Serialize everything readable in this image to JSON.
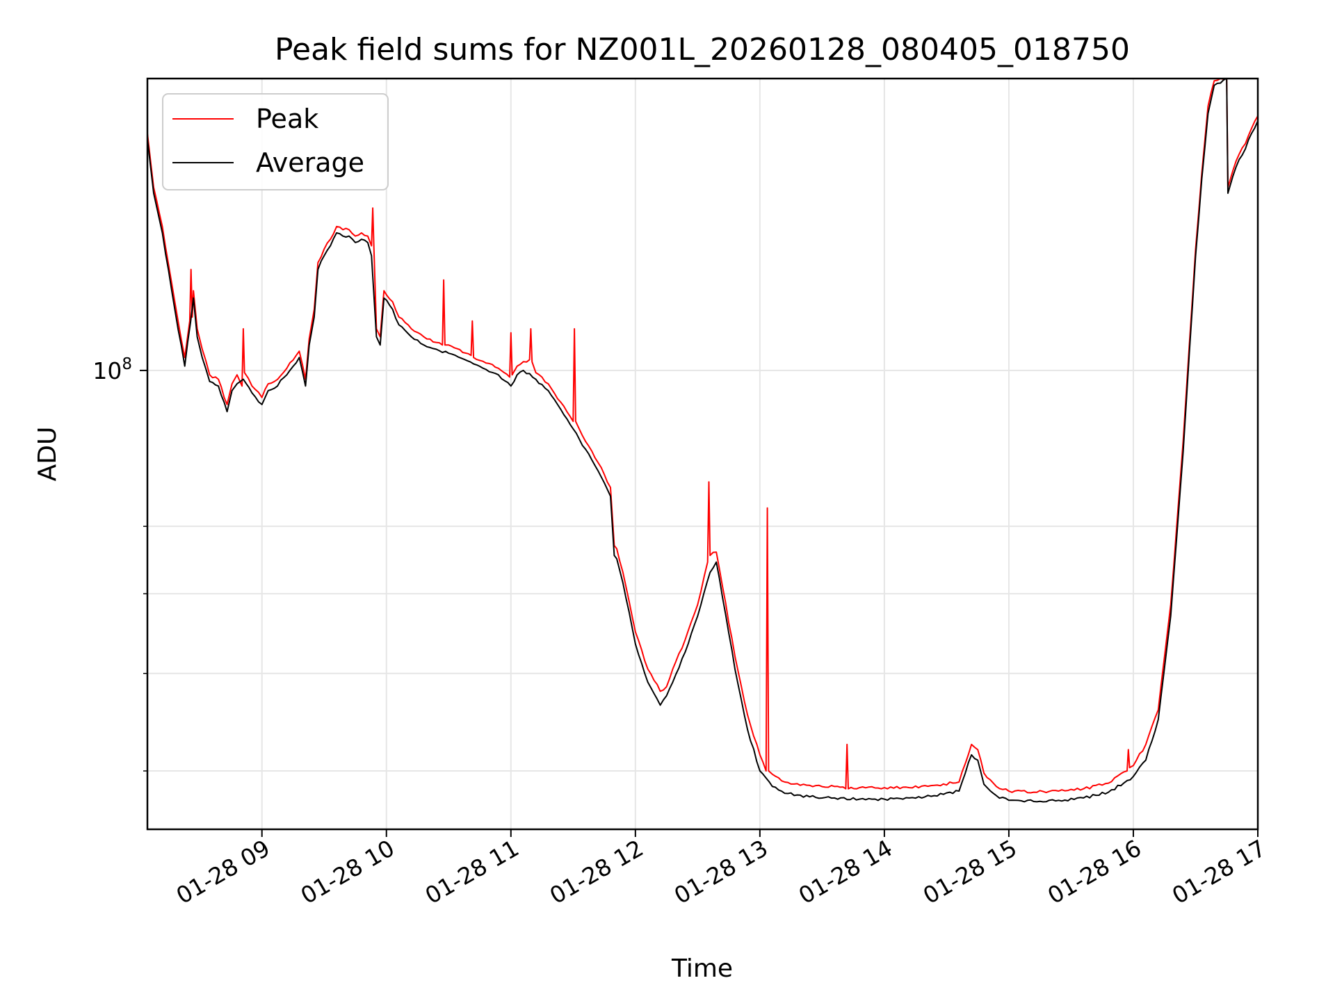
{
  "chart_data": {
    "type": "line",
    "title": "Peak field sums for NZ001L_20260128_080405_018750",
    "xlabel": "Time",
    "ylabel": "ADU",
    "yscale": "log",
    "xlim_hours": [
      8.08,
      17.0
    ],
    "ylim": [
      35000000,
      195000000
    ],
    "x_ticks": [
      {
        "value": 9,
        "label": "01-28 09"
      },
      {
        "value": 10,
        "label": "01-28 10"
      },
      {
        "value": 11,
        "label": "01-28 11"
      },
      {
        "value": 12,
        "label": "01-28 12"
      },
      {
        "value": 13,
        "label": "01-28 13"
      },
      {
        "value": 14,
        "label": "01-28 14"
      },
      {
        "value": 15,
        "label": "01-28 15"
      },
      {
        "value": 16,
        "label": "01-28 16"
      },
      {
        "value": 17,
        "label": "01-28 17"
      }
    ],
    "y_major_ticks": [
      {
        "value": 100000000,
        "base": "10",
        "exp": "8"
      }
    ],
    "y_minor_ticks": [
      40000000,
      50000000,
      60000000,
      70000000
    ],
    "grid": true,
    "legend_position": "top-left",
    "series": [
      {
        "name": "Average",
        "color": "#000000",
        "x": [
          8.08,
          8.13,
          8.2,
          8.3,
          8.38,
          8.45,
          8.48,
          8.52,
          8.58,
          8.65,
          8.72,
          8.76,
          8.8,
          8.85,
          8.92,
          9.0,
          9.05,
          9.1,
          9.2,
          9.3,
          9.35,
          9.38,
          9.42,
          9.45,
          9.5,
          9.55,
          9.6,
          9.65,
          9.7,
          9.75,
          9.8,
          9.85,
          9.88,
          9.92,
          9.95,
          9.98,
          10.05,
          10.1,
          10.2,
          10.3,
          10.5,
          10.7,
          10.9,
          11.0,
          11.05,
          11.1,
          11.2,
          11.3,
          11.4,
          11.5,
          11.6,
          11.7,
          11.8,
          11.83,
          11.85,
          11.9,
          12.0,
          12.1,
          12.2,
          12.25,
          12.3,
          12.4,
          12.5,
          12.6,
          12.65,
          12.7,
          12.8,
          12.9,
          13.0,
          13.1,
          13.2,
          13.4,
          13.6,
          13.8,
          14.0,
          14.2,
          14.4,
          14.6,
          14.7,
          14.75,
          14.8,
          14.9,
          15.0,
          15.2,
          15.4,
          15.6,
          15.8,
          16.0,
          16.1,
          16.2,
          16.3,
          16.4,
          16.5,
          16.55,
          16.6,
          16.65,
          16.7,
          16.75,
          16.76,
          16.8,
          16.85,
          16.9,
          16.95,
          17.0
        ],
        "values": [
          170000000,
          150000000,
          137000000,
          115000000,
          101000000,
          118000000,
          108000000,
          103000000,
          97500000,
          96500000,
          91000000,
          95500000,
          97000000,
          98000000,
          95000000,
          92500000,
          95500000,
          96000000,
          99000000,
          103000000,
          96500000,
          106000000,
          113000000,
          126000000,
          130000000,
          133000000,
          137000000,
          136000000,
          136000000,
          134000000,
          135000000,
          134000000,
          130000000,
          108000000,
          106000000,
          118000000,
          115000000,
          111000000,
          108000000,
          106000000,
          104000000,
          101500000,
          99000000,
          96500000,
          99000000,
          100000000,
          98000000,
          95500000,
          91500000,
          87500000,
          83500000,
          79500000,
          75000000,
          65500000,
          65000000,
          61500000,
          53500000,
          49000000,
          46500000,
          47500000,
          49000000,
          52500000,
          57000000,
          63000000,
          64500000,
          59500000,
          50500000,
          44000000,
          40000000,
          38600000,
          38000000,
          37700000,
          37600000,
          37500000,
          37500000,
          37600000,
          37800000,
          38200000,
          41500000,
          41000000,
          38800000,
          37800000,
          37400000,
          37300000,
          37400000,
          37600000,
          38100000,
          39500000,
          41000000,
          45000000,
          57000000,
          83000000,
          130000000,
          155000000,
          180000000,
          192000000,
          193000000,
          195000000,
          150000000,
          156000000,
          162000000,
          166000000,
          172000000,
          177000000
        ]
      },
      {
        "name": "Peak",
        "color": "#ff0000",
        "x": [
          8.08,
          8.13,
          8.2,
          8.3,
          8.38,
          8.42,
          8.43,
          8.44,
          8.45,
          8.48,
          8.52,
          8.58,
          8.65,
          8.72,
          8.76,
          8.8,
          8.84,
          8.85,
          8.86,
          8.92,
          9.0,
          9.05,
          9.1,
          9.2,
          9.3,
          9.35,
          9.38,
          9.42,
          9.45,
          9.5,
          9.55,
          9.6,
          9.65,
          9.7,
          9.75,
          9.8,
          9.85,
          9.88,
          9.89,
          9.9,
          9.92,
          9.95,
          9.98,
          10.05,
          10.1,
          10.2,
          10.3,
          10.45,
          10.46,
          10.47,
          10.5,
          10.68,
          10.69,
          10.7,
          10.9,
          10.99,
          11.0,
          11.01,
          11.05,
          11.15,
          11.16,
          11.17,
          11.2,
          11.3,
          11.4,
          11.5,
          11.51,
          11.52,
          11.6,
          11.7,
          11.8,
          11.83,
          11.85,
          11.9,
          12.0,
          12.1,
          12.2,
          12.25,
          12.3,
          12.4,
          12.5,
          12.58,
          12.59,
          12.6,
          12.65,
          12.7,
          12.8,
          12.9,
          13.0,
          13.05,
          13.06,
          13.07,
          13.1,
          13.2,
          13.4,
          13.6,
          13.69,
          13.7,
          13.71,
          13.8,
          14.0,
          14.2,
          14.4,
          14.6,
          14.7,
          14.75,
          14.8,
          14.9,
          15.0,
          15.2,
          15.4,
          15.6,
          15.8,
          15.95,
          15.96,
          15.97,
          16.0,
          16.1,
          16.2,
          16.3,
          16.4,
          16.5,
          16.55,
          16.6,
          16.65,
          16.7,
          16.75,
          16.76,
          16.8,
          16.85,
          16.9,
          16.95,
          17.0
        ],
        "values": [
          172000000,
          152000000,
          139000000,
          117000000,
          103000000,
          112000000,
          126000000,
          113000000,
          120000000,
          110000000,
          105000000,
          99000000,
          98000000,
          92500000,
          97000000,
          99000000,
          96500000,
          110000000,
          99500000,
          96500000,
          94000000,
          97000000,
          97500000,
          100500000,
          104500000,
          98000000,
          107500000,
          115000000,
          128000000,
          132000000,
          135000000,
          139000000,
          138000000,
          138000000,
          136000000,
          137000000,
          136000000,
          133000000,
          145000000,
          132000000,
          110000000,
          108000000,
          120000000,
          117000000,
          113000000,
          110000000,
          108000000,
          106000000,
          123000000,
          106000000,
          106000000,
          103500000,
          112000000,
          103000000,
          100500000,
          98500000,
          109000000,
          99000000,
          101000000,
          102500000,
          110000000,
          102000000,
          99500000,
          97000000,
          93000000,
          89000000,
          110000000,
          89000000,
          85000000,
          81000000,
          76500000,
          67000000,
          66500000,
          63000000,
          55000000,
          50500000,
          48000000,
          48500000,
          50500000,
          54000000,
          58500000,
          64500000,
          77500000,
          65500000,
          66000000,
          61000000,
          52000000,
          45500000,
          41500000,
          40000000,
          73000000,
          40000000,
          39700000,
          39000000,
          38700000,
          38600000,
          38400000,
          42500000,
          38400000,
          38500000,
          38500000,
          38500000,
          38700000,
          39000000,
          42500000,
          42000000,
          39800000,
          38600000,
          38200000,
          38100000,
          38200000,
          38400000,
          38900000,
          40000000,
          42000000,
          40300000,
          40500000,
          42500000,
          46000000,
          58500000,
          85000000,
          132000000,
          157000000,
          183000000,
          194000000,
          195000000,
          195000000,
          152000000,
          158000000,
          164000000,
          168000000,
          174000000,
          179000000
        ]
      }
    ]
  }
}
